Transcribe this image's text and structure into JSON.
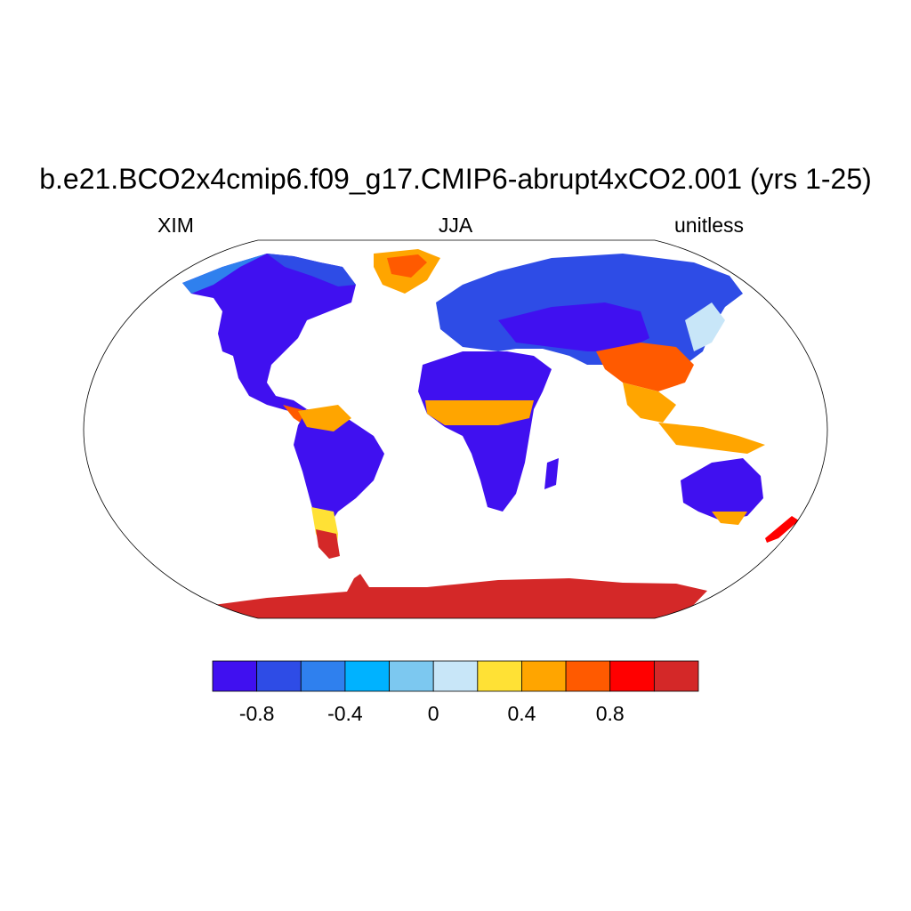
{
  "header": {
    "title": "b.e21.BCO2x4cmip6.f09_g17.CMIP6-abrupt4xCO2.001 (yrs 1-25)",
    "variable": "XIM",
    "season": "JJA",
    "units": "unitless"
  },
  "colorbar": {
    "colors": [
      "#4010f0",
      "#2e4ce6",
      "#2f80ee",
      "#00b2ff",
      "#7cc8f0",
      "#c8e6f8",
      "#ffe135",
      "#ffa500",
      "#ff5a00",
      "#ff0000",
      "#d42828"
    ],
    "tick_labels": [
      "-0.8",
      "-0.4",
      "0",
      "0.4",
      "0.8"
    ],
    "tick_values": [
      -0.8,
      -0.4,
      0,
      0.4,
      0.8
    ],
    "range": [
      -1.0,
      1.2
    ]
  },
  "map": {
    "projection": "robinson",
    "ocean_color": "#ffffff",
    "coastline_color": "#000000"
  }
}
